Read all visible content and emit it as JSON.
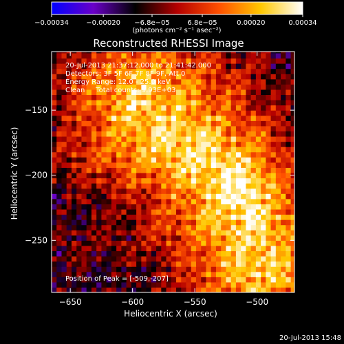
{
  "chart_data": {
    "type": "heatmap",
    "title": "Reconstructed RHESSI Image",
    "xlabel": "Heliocentric X (arcsec)",
    "ylabel": "Heliocentric Y (arcsec)",
    "xlim": [
      -665,
      -470
    ],
    "ylim": [
      -290,
      -105
    ],
    "xticks": [
      -650,
      -600,
      -550,
      -500
    ],
    "xtick_labels": [
      "−650",
      "−600",
      "−550",
      "−500"
    ],
    "yticks": [
      -150,
      -200,
      -250
    ],
    "ytick_labels": [
      "−150",
      "−200",
      "−250"
    ],
    "colorbar": {
      "range": [
        -0.00034,
        0.00034
      ],
      "ticks": [
        -0.00034,
        -0.0002,
        -6.8e-05,
        6.8e-05,
        0.0002,
        0.00034
      ],
      "tick_labels": [
        "−0.00034",
        "−0.00020",
        "−6.8e−05",
        "6.8e−05",
        "0.00020",
        "0.00034"
      ],
      "units": "(photons cm⁻² s⁻¹ asec⁻²)",
      "colors": [
        "#0000ff",
        "#6a00c8",
        "#000000",
        "#b40000",
        "#ff5000",
        "#ffc800",
        "#ffffff"
      ]
    },
    "annotations": [
      "20-Jul-2013 21:37:12.000 to 21:41:42.000",
      "Detectors: 3F 5F 6F 7F 8F 9F, Att 0",
      "Energy Range: 12.0 - 25.0 keV",
      "Clean     Total counts: 9.93E+03"
    ],
    "peak_label": "Position of Peak = [-509,-207]",
    "peak": [
      -509,
      -207
    ],
    "bright_ridge": [
      [
        -590,
        -150
      ],
      [
        -555,
        -175
      ],
      [
        -530,
        -205
      ],
      [
        -510,
        -235
      ],
      [
        -500,
        -265
      ]
    ],
    "grid": false
  },
  "footer": {
    "timestamp": "20-Jul-2013 15:48"
  }
}
